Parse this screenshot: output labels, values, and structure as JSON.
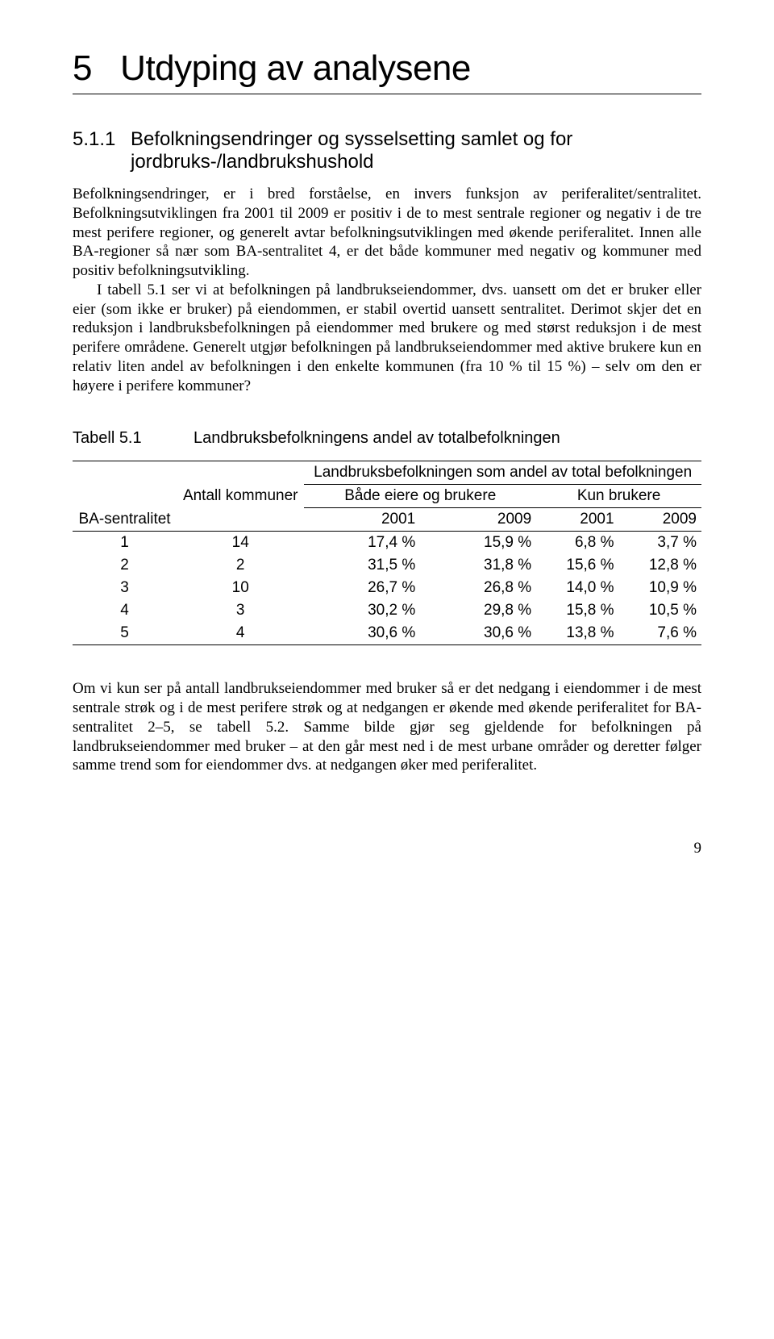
{
  "chapter": {
    "number": "5",
    "title": "Utdyping av analysene"
  },
  "section": {
    "number": "5.1.1",
    "title": "Befolkningsendringer og sysselsetting samlet og for jordbruks-/landbrukshushold"
  },
  "para1": "Befolkningsendringer, er i bred forståelse, en invers funksjon av periferalitet/sentralitet. Befolkningsutviklingen fra 2001 til 2009 er positiv i de to mest sentrale regioner og negativ i de tre mest perifere regioner, og generelt avtar befolkningsutviklingen med økende periferalitet. Innen alle BA-regioner så nær som BA-sentralitet 4, er det både kommuner med negativ og kommuner med positiv befolkningsutvikling.",
  "para2": "I tabell 5.1 ser vi at befolkningen på landbrukseiendommer, dvs. uansett om det er bruker eller eier (som ikke er bruker) på eiendommen, er stabil overtid uansett sentralitet. Derimot skjer det en reduksjon i landbruksbefolkningen på eiendommer med brukere og med størst reduksjon i de mest perifere områdene. Generelt utgjør befolkningen på landbrukseiendommer med aktive brukere kun en relativ liten andel av befolkningen i den enkelte kommunen (fra 10 % til 15 %) – selv om den er høyere i perifere kommuner?",
  "table": {
    "caption_label": "Tabell 5.1",
    "caption_text": "Landbruksbefolkningens andel av totalbefolkningen",
    "col_ba": "BA-sentralitet",
    "col_antall": "Antall kommuner",
    "col_group": "Landbruksbefolkningen som andel av total befolkningen",
    "col_sub1": "Både eiere og brukere",
    "col_sub2": "Kun brukere",
    "year1": "2001",
    "year2": "2009",
    "year3": "2001",
    "year4": "2009",
    "rows": [
      {
        "ba": "1",
        "n": "14",
        "a": "17,4 %",
        "b": "15,9 %",
        "c": "6,8 %",
        "d": "3,7 %"
      },
      {
        "ba": "2",
        "n": "2",
        "a": "31,5 %",
        "b": "31,8 %",
        "c": "15,6 %",
        "d": "12,8 %"
      },
      {
        "ba": "3",
        "n": "10",
        "a": "26,7 %",
        "b": "26,8 %",
        "c": "14,0 %",
        "d": "10,9 %"
      },
      {
        "ba": "4",
        "n": "3",
        "a": "30,2 %",
        "b": "29,8 %",
        "c": "15,8 %",
        "d": "10,5 %"
      },
      {
        "ba": "5",
        "n": "4",
        "a": "30,6 %",
        "b": "30,6 %",
        "c": "13,8 %",
        "d": "7,6 %"
      }
    ]
  },
  "para3": "Om vi kun ser på antall landbrukseiendommer med bruker så er det nedgang i eiendommer i de mest sentrale strøk og i de mest perifere strøk og at nedgangen er økende med økende periferalitet for BA-sentralitet 2–5, se tabell 5.2. Samme bilde gjør seg gjeldende for befolkningen på landbrukseiendommer med bruker – at den går mest ned i de mest urbane områder og deretter følger samme trend som for eiendommer dvs. at nedgangen øker med periferalitet.",
  "page_number": "9"
}
